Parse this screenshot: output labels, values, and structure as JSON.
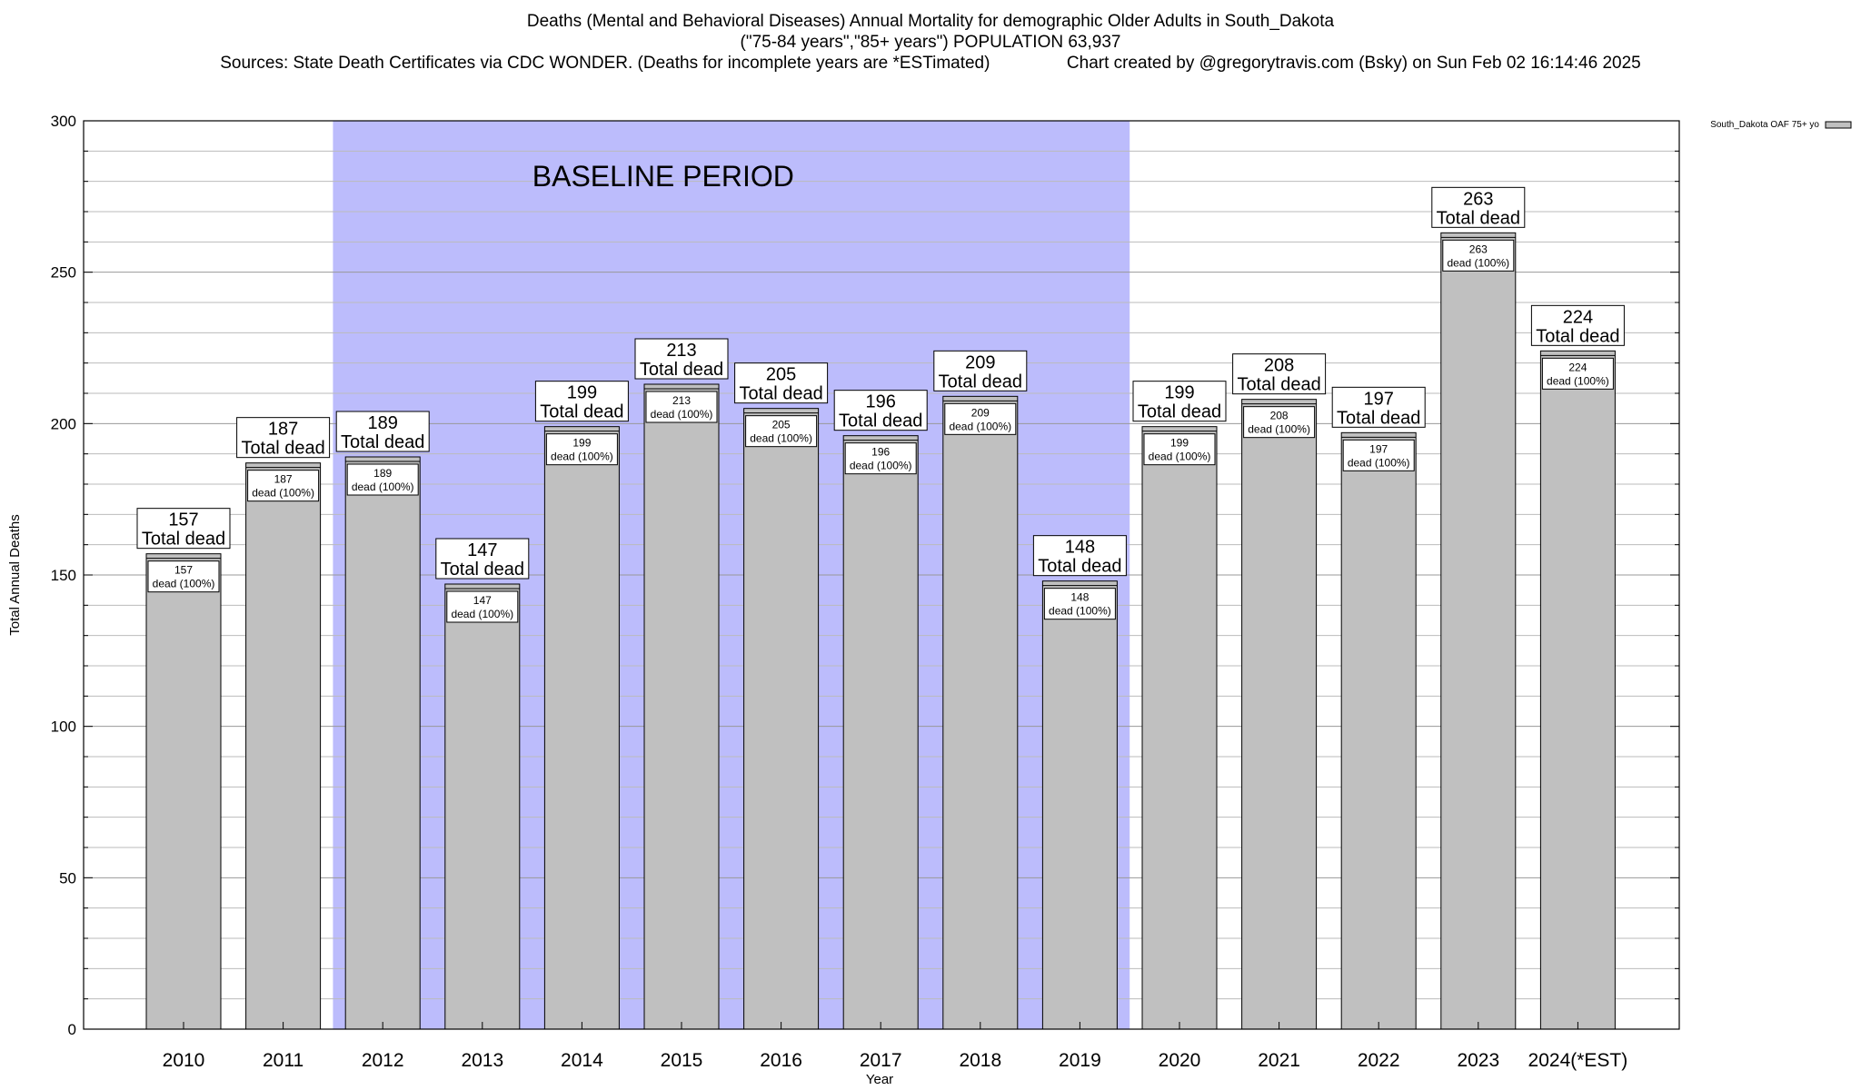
{
  "chart_data": {
    "type": "bar",
    "title": "Deaths (Mental and Behavioral Diseases) Annual Mortality for demographic Older Adults in South_Dakota",
    "subtitle": "(\"75-84 years\",\"85+ years\") POPULATION 63,937",
    "sources_line": "Sources: State Death Certificates via CDC WONDER. (Deaths for incomplete years are *ESTimated)                Chart created by @gregorytravis.com (Bsky) on Sun Feb 02 16:14:46 2025",
    "xlabel": "Year",
    "ylabel": "Total Annual Deaths",
    "ylim": [
      0,
      300
    ],
    "yticks": [
      0,
      50,
      100,
      150,
      200,
      250,
      300
    ],
    "grid": true,
    "categories": [
      "2010",
      "2011",
      "2012",
      "2013",
      "2014",
      "2015",
      "2016",
      "2017",
      "2018",
      "2019",
      "2020",
      "2021",
      "2022",
      "2023",
      "2024(*EST)"
    ],
    "series": [
      {
        "name": "South_Dakota OAF 75+ yo",
        "values": [
          157,
          187,
          189,
          147,
          199,
          213,
          205,
          196,
          209,
          148,
          199,
          208,
          197,
          263,
          224
        ],
        "color": "#c0c0c0"
      }
    ],
    "total_label_suffix": "Total dead",
    "inner_label_suffix": "dead (100%)",
    "baseline": {
      "label": "BASELINE PERIOD",
      "from": "2012",
      "to": "2019",
      "color": "#bcbcfc"
    },
    "legend_position": "top-right"
  }
}
